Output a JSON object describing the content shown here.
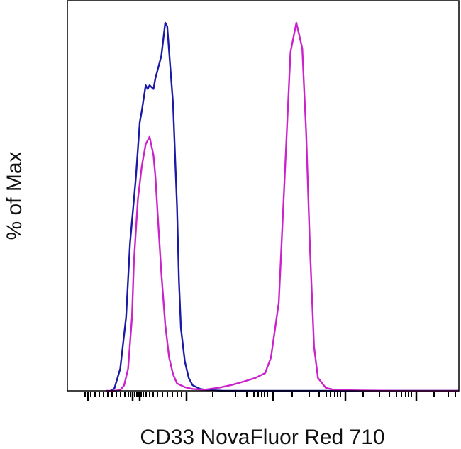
{
  "chart_data": {
    "type": "line",
    "title": "",
    "xlabel": "CD33 NovaFluor Red 710",
    "ylabel": "% of Max",
    "xlim": [
      0,
      100
    ],
    "ylim": [
      0,
      100
    ],
    "x_scale": "biexponential",
    "tick_labels_shown": false,
    "grid": false,
    "legend": "none",
    "series": [
      {
        "color": "#1a1aa6",
        "x": [
          11.0,
          12.0,
          13.5,
          15.0,
          16.0,
          17.5,
          18.5,
          19.0,
          20.0,
          20.5,
          21.0,
          22.0,
          22.5,
          23.0,
          24.0,
          25.0,
          25.5,
          26.0,
          27.0,
          28.0,
          28.5,
          29.0,
          30.0,
          31.0,
          32.0,
          34.0,
          36.0,
          40.0,
          45.0,
          55.0,
          65.0,
          75.0,
          85.0,
          95.0,
          100.0
        ],
        "y": [
          0.0,
          0.6,
          6.0,
          20.0,
          40.0,
          58.0,
          73.0,
          76.0,
          83.0,
          82.0,
          83.0,
          82.0,
          85.0,
          87.0,
          91.0,
          100.0,
          99.0,
          92.0,
          78.0,
          50.0,
          30.0,
          17.0,
          8.0,
          3.5,
          1.5,
          0.5,
          0.2,
          0.0,
          0.0,
          0.0,
          0.0,
          0.0,
          0.0,
          0.0,
          0.0
        ]
      },
      {
        "color": "#cc22cc",
        "x": [
          10.0,
          12.0,
          13.5,
          14.5,
          15.5,
          16.5,
          17.0,
          18.0,
          19.0,
          20.0,
          21.0,
          22.0,
          22.5,
          23.0,
          24.0,
          25.0,
          26.0,
          27.0,
          28.0,
          30.0,
          32.0,
          35.0,
          37.0,
          39.0,
          42.0,
          45.0,
          48.0,
          50.5,
          52.0,
          54.0,
          55.5,
          57.0,
          58.5,
          60.0,
          61.0,
          62.0,
          63.0,
          64.0,
          66.0,
          68.0,
          70.0,
          75.0,
          85.0,
          95.0,
          100.0
        ],
        "y": [
          0.0,
          0.0,
          0.2,
          1.5,
          6.0,
          20.0,
          35.0,
          52.0,
          61.0,
          67.0,
          69.0,
          64.0,
          58.0,
          49.0,
          32.0,
          18.0,
          9.0,
          4.5,
          2.0,
          1.0,
          0.5,
          0.3,
          0.6,
          0.9,
          1.6,
          2.5,
          3.5,
          4.8,
          9.0,
          24.0,
          58.0,
          92.0,
          100.0,
          93.0,
          70.0,
          38.0,
          12.0,
          3.5,
          0.8,
          0.3,
          0.2,
          0.1,
          0.0,
          0.0,
          0.0
        ]
      }
    ]
  }
}
